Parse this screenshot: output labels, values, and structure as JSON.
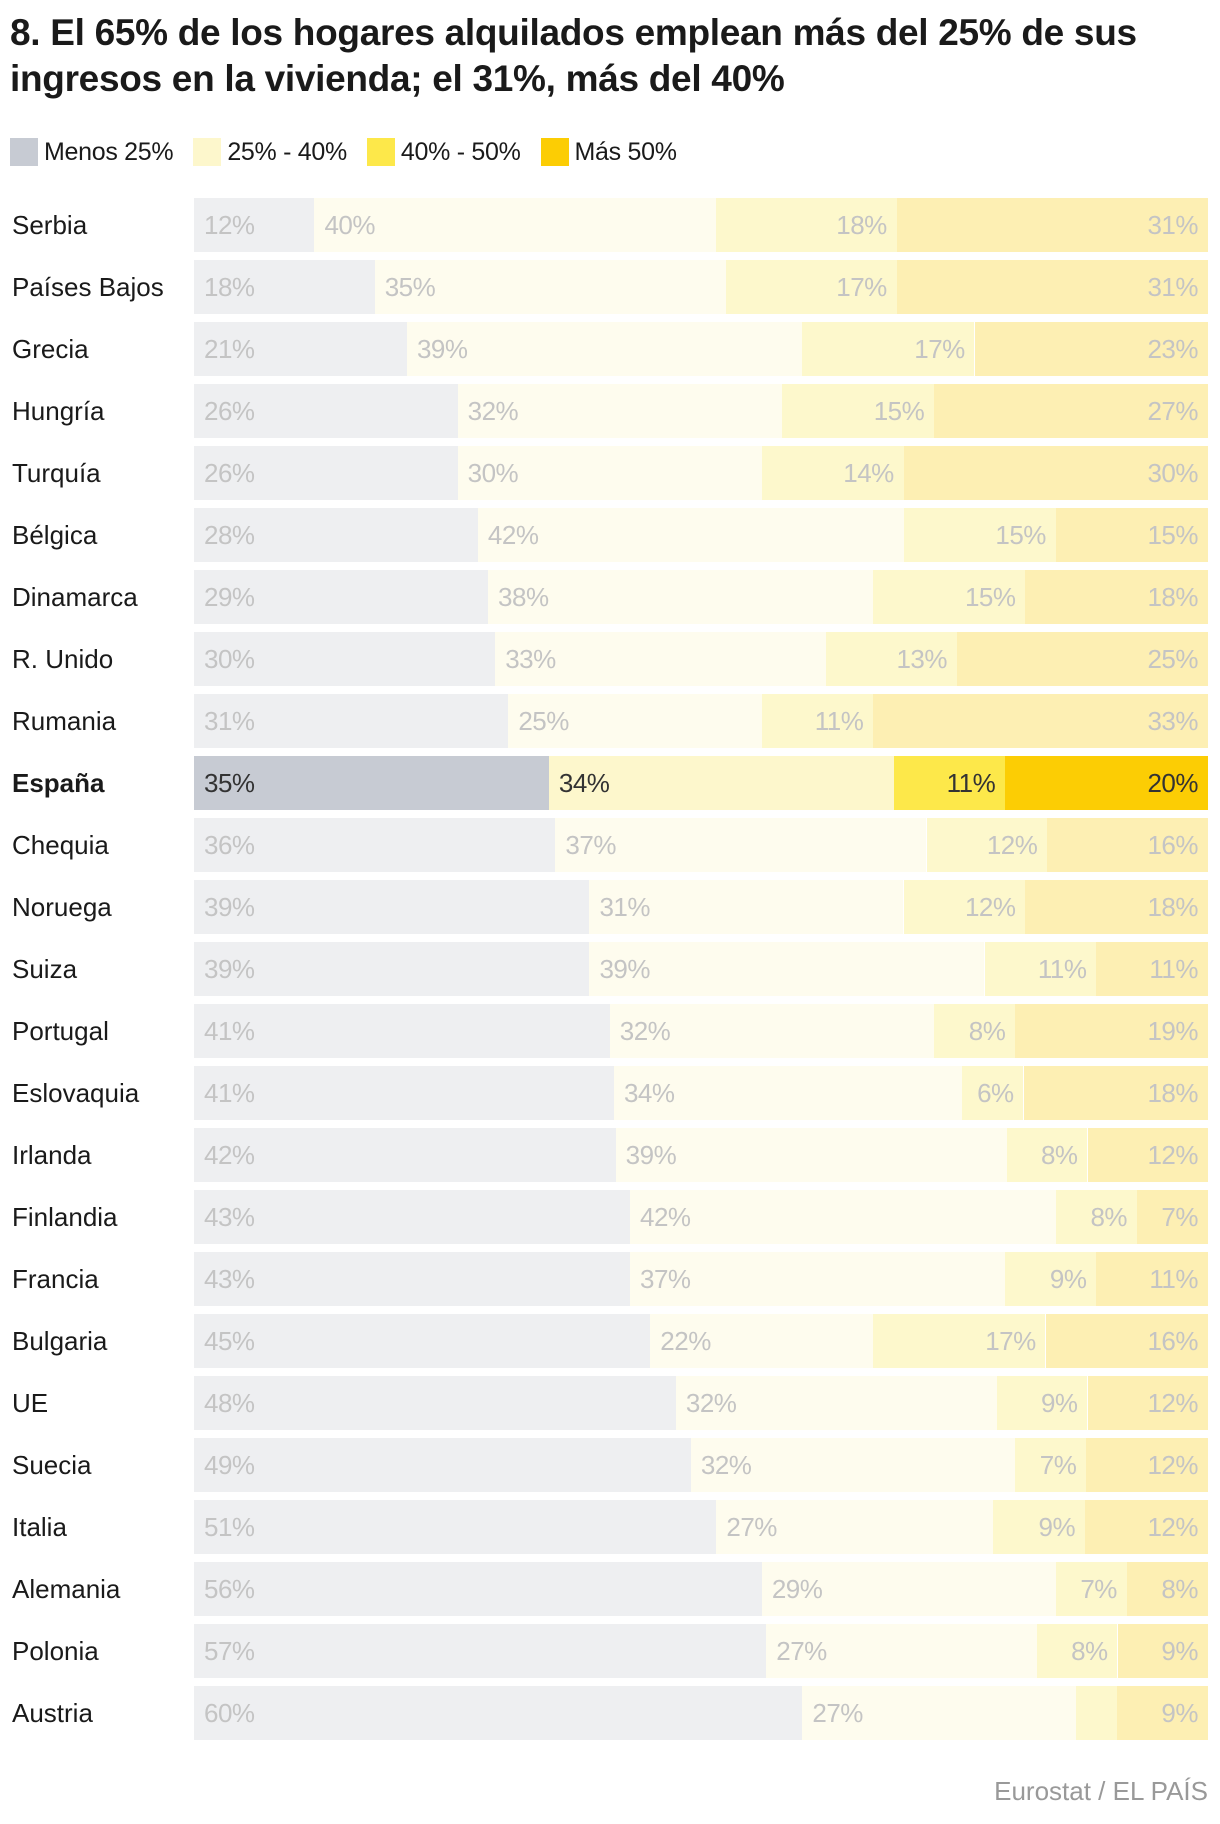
{
  "title": "8. El 65% de los hogares alquilados emplean más del 25% de sus ingresos en la vivienda; el 31%, más del 40%",
  "source": "Eurostat / EL PAÍS",
  "legend": [
    {
      "label": "Menos 25%",
      "color": "#c7cbd3"
    },
    {
      "label": "25% - 40%",
      "color": "#fdf7cc"
    },
    {
      "label": "40% - 50%",
      "color": "#fde84a"
    },
    {
      "label": "Más 50%",
      "color": "#fccd04"
    }
  ],
  "colors": {
    "highlight": [
      "#c7cbd3",
      "#fdf7cc",
      "#fde84a",
      "#fccd04"
    ],
    "muted": [
      "#eeeff1",
      "#fefcee",
      "#fdf8cc",
      "#fdefb3"
    ],
    "highlight_text": "#333333",
    "muted_text": "#c4c4c4"
  },
  "chart_data": {
    "type": "bar",
    "orientation": "horizontal",
    "stacked": true,
    "normalized": true,
    "title": "8. El 65% de los hogares alquilados emplean más del 25% de sus ingresos en la vivienda; el 31%, más del 40%",
    "xlabel": "",
    "ylabel": "",
    "legend_position": "top-left",
    "grid": false,
    "highlight_category": "España",
    "categories": [
      "Serbia",
      "Países Bajos",
      "Grecia",
      "Hungría",
      "Turquía",
      "Bélgica",
      "Dinamarca",
      "R. Unido",
      "Rumania",
      "España",
      "Chequia",
      "Noruega",
      "Suiza",
      "Portugal",
      "Eslovaquia",
      "Irlanda",
      "Finlandia",
      "Francia",
      "Bulgaria",
      "UE",
      "Suecia",
      "Italia",
      "Alemania",
      "Polonia",
      "Austria"
    ],
    "series": [
      {
        "name": "Menos 25%",
        "values": [
          12,
          18,
          21,
          26,
          26,
          28,
          29,
          30,
          31,
          35,
          36,
          39,
          39,
          41,
          41,
          42,
          43,
          43,
          45,
          48,
          49,
          51,
          56,
          57,
          60
        ]
      },
      {
        "name": "25% - 40%",
        "values": [
          40,
          35,
          39,
          32,
          30,
          42,
          38,
          33,
          25,
          34,
          37,
          31,
          39,
          32,
          34,
          39,
          42,
          37,
          22,
          32,
          32,
          27,
          29,
          27,
          27
        ]
      },
      {
        "name": "40% - 50%",
        "values": [
          18,
          17,
          17,
          15,
          14,
          15,
          15,
          13,
          11,
          11,
          12,
          12,
          11,
          8,
          6,
          8,
          8,
          9,
          17,
          9,
          7,
          9,
          7,
          8,
          4
        ]
      },
      {
        "name": "Más 50%",
        "values": [
          31,
          31,
          23,
          27,
          30,
          15,
          18,
          25,
          33,
          20,
          16,
          18,
          11,
          19,
          18,
          12,
          7,
          11,
          16,
          12,
          12,
          12,
          8,
          9,
          9
        ]
      }
    ],
    "unlabeled_segments": [
      {
        "category": "Austria",
        "series": "40% - 50%"
      }
    ],
    "value_suffix": "%"
  }
}
